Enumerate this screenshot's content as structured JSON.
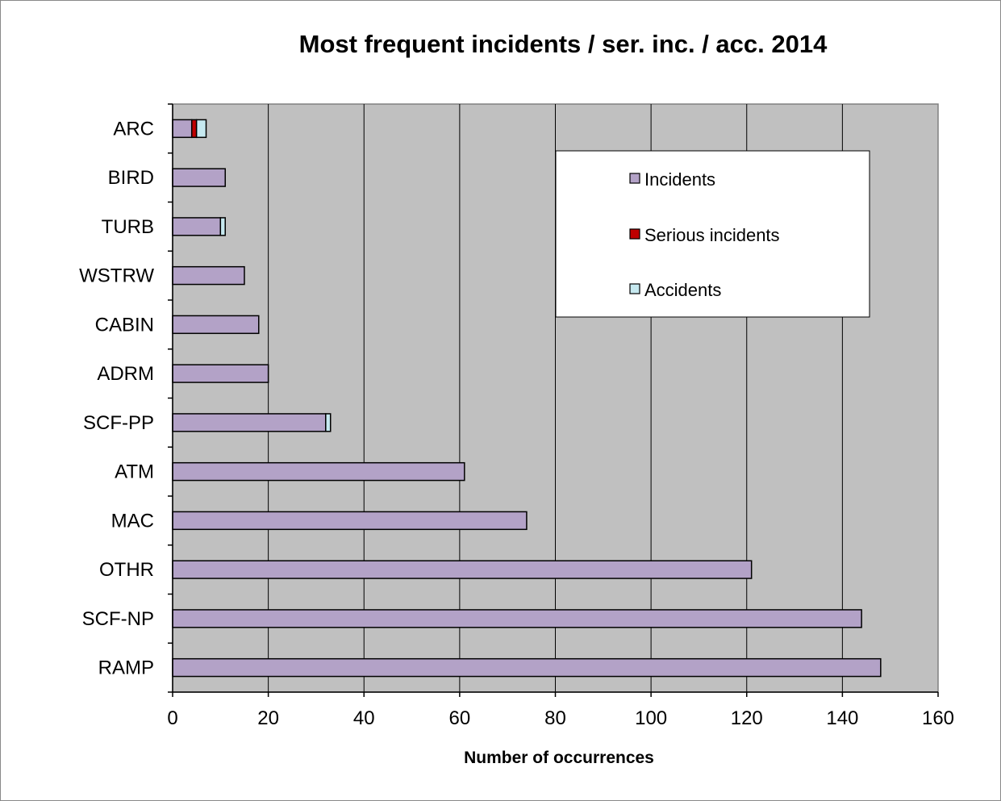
{
  "chart_data": {
    "type": "bar",
    "orientation": "horizontal",
    "stacked": true,
    "title": "Most frequent incidents / ser. inc. / acc. 2014",
    "xlabel": "Number of occurrences",
    "ylabel": "",
    "xlim": [
      0,
      160
    ],
    "x_ticks": [
      0,
      20,
      40,
      60,
      80,
      100,
      120,
      140,
      160
    ],
    "grid": "vertical",
    "legend_position": "top-right",
    "categories": [
      "ARC",
      "BIRD",
      "TURB",
      "WSTRW",
      "CABIN",
      "ADRM",
      "SCF-PP",
      "ATM",
      "MAC",
      "OTHR",
      "SCF-NP",
      "RAMP"
    ],
    "series": [
      {
        "name": "Incidents",
        "color": "#b3a2c7",
        "values": [
          4,
          11,
          10,
          15,
          18,
          20,
          32,
          61,
          74,
          121,
          144,
          148
        ]
      },
      {
        "name": "Serious incidents",
        "color": "#c00000",
        "values": [
          1,
          0,
          0,
          0,
          0,
          0,
          0,
          0,
          0,
          0,
          0,
          0
        ]
      },
      {
        "name": "Accidents",
        "color": "#c6e9f0",
        "values": [
          2,
          0,
          1,
          0,
          0,
          0,
          1,
          0,
          0,
          0,
          0,
          0
        ]
      }
    ],
    "plot_background": "#c0c0c0"
  }
}
